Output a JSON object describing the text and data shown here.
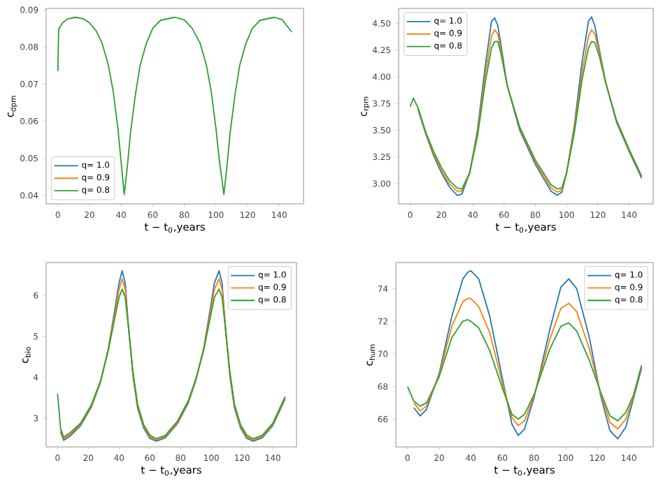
{
  "chart_data": [
    {
      "type": "line",
      "xlabel": "t − t$_{0}$,years",
      "ylabel": "c$_{dpm}$",
      "legend": "bottom left",
      "xlim": [
        -7.4,
        155.4
      ],
      "ylim": [
        0.0377,
        0.0904
      ],
      "xticks": [
        0,
        20,
        40,
        60,
        80,
        100,
        120,
        140
      ],
      "yticks": [
        0.04,
        0.05,
        0.06,
        0.07,
        0.08,
        0.09
      ],
      "x": [
        0,
        0.5,
        3,
        6,
        11,
        16,
        20,
        24,
        28,
        32,
        35,
        38,
        40,
        42,
        44,
        46,
        49,
        52,
        56,
        60,
        65,
        74,
        80,
        85,
        90,
        94,
        97,
        100,
        102,
        105,
        107,
        109,
        112,
        115,
        119,
        123,
        128,
        137,
        142,
        148
      ],
      "series": [
        {
          "name": "q= 1.0",
          "color": "#1f77b4",
          "values": [
            null,
            null,
            null,
            null,
            null,
            null,
            null,
            null,
            null,
            null,
            null,
            null,
            null,
            null,
            null,
            null,
            null,
            null,
            null,
            null,
            null,
            null,
            null,
            null,
            null,
            null,
            null,
            null,
            null,
            null,
            null,
            null,
            null,
            null,
            null,
            null,
            null,
            null,
            null,
            null
          ]
        },
        {
          "name": "q= 0.9",
          "color": "#ff7f0e",
          "values": [
            null,
            null,
            null,
            null,
            null,
            null,
            null,
            null,
            null,
            null,
            null,
            null,
            null,
            null,
            null,
            null,
            null,
            null,
            null,
            null,
            null,
            null,
            null,
            null,
            null,
            null,
            null,
            null,
            null,
            null,
            null,
            null,
            null,
            null,
            null,
            null,
            null,
            null,
            null,
            null
          ]
        },
        {
          "name": "q= 0.8",
          "color": "#2ca02c",
          "values": [
            0.0735,
            0.0848,
            0.0865,
            0.0875,
            0.088,
            0.0876,
            0.0865,
            0.0845,
            0.081,
            0.075,
            0.068,
            0.058,
            0.049,
            0.0402,
            0.048,
            0.057,
            0.067,
            0.075,
            0.081,
            0.085,
            0.0872,
            0.088,
            0.0873,
            0.085,
            0.081,
            0.075,
            0.068,
            0.058,
            0.05,
            0.0402,
            0.048,
            0.057,
            0.067,
            0.075,
            0.081,
            0.085,
            0.0872,
            0.088,
            0.0873,
            0.084
          ]
        }
      ]
    },
    {
      "type": "line",
      "xlabel": "t − t$_{0}$,years",
      "ylabel": "c$_{rpm}$",
      "legend": "top left",
      "xlim": [
        -7.4,
        155.4
      ],
      "ylim": [
        2.81,
        4.64
      ],
      "xticks": [
        0,
        20,
        40,
        60,
        80,
        100,
        120,
        140
      ],
      "yticks": [
        {
          "value": 3.0,
          "label": "3.00"
        },
        {
          "value": 3.25,
          "label": "3.25"
        },
        {
          "value": 3.5,
          "label": "3.50"
        },
        {
          "value": 3.75,
          "label": "3.75"
        },
        {
          "value": 4.0,
          "label": "4.00"
        },
        {
          "value": 4.25,
          "label": "4.25"
        },
        {
          "value": 4.5,
          "label": "4.50"
        }
      ],
      "x": [
        0,
        2,
        5,
        10,
        15,
        20,
        25,
        30,
        33,
        38,
        43,
        48,
        52,
        54,
        56,
        58,
        62,
        70,
        80,
        90,
        94,
        97,
        100,
        105,
        110,
        114,
        116,
        118,
        121,
        125,
        132,
        140,
        148
      ],
      "series": [
        {
          "name": "q= 1.0",
          "color": "#1f77b4",
          "values": [
            null,
            null,
            3.69,
            3.46,
            3.26,
            3.1,
            2.97,
            2.89,
            2.9,
            3.1,
            3.5,
            4.1,
            4.52,
            4.55,
            4.48,
            4.3,
            3.92,
            3.5,
            3.18,
            2.93,
            2.89,
            2.92,
            3.1,
            3.55,
            4.15,
            4.52,
            4.56,
            4.48,
            4.25,
            3.95,
            3.57,
            3.3,
            3.05
          ]
        },
        {
          "name": "q= 0.9",
          "color": "#ff7f0e",
          "values": [
            null,
            null,
            3.7,
            3.47,
            3.28,
            3.12,
            3.0,
            2.93,
            2.93,
            3.1,
            3.47,
            4.02,
            4.38,
            4.44,
            4.4,
            4.25,
            3.92,
            3.52,
            3.2,
            2.96,
            2.92,
            2.94,
            3.1,
            3.52,
            4.05,
            4.38,
            4.44,
            4.4,
            4.22,
            3.95,
            3.58,
            3.31,
            3.06
          ]
        },
        {
          "name": "q= 0.8",
          "color": "#2ca02c",
          "values": [
            3.72,
            3.8,
            3.71,
            3.48,
            3.3,
            3.15,
            3.03,
            2.96,
            2.95,
            3.1,
            3.44,
            3.95,
            4.27,
            4.33,
            4.33,
            4.22,
            3.92,
            3.53,
            3.22,
            2.99,
            2.95,
            2.96,
            3.1,
            3.48,
            3.98,
            4.27,
            4.33,
            4.32,
            4.19,
            3.94,
            3.59,
            3.32,
            3.07
          ]
        }
      ]
    },
    {
      "type": "line",
      "xlabel": "t − t$_{0}$,years",
      "ylabel": "c$_{bio}$",
      "legend": "top right",
      "xlim": [
        -7.4,
        155.4
      ],
      "ylim": [
        2.3,
        6.8
      ],
      "xticks": [
        0,
        20,
        40,
        60,
        80,
        100,
        120,
        140
      ],
      "yticks": [
        3,
        4,
        5,
        6
      ],
      "x": [
        0,
        2,
        4,
        8,
        15,
        22,
        28,
        33,
        37,
        40,
        42,
        44,
        46,
        49,
        52,
        56,
        60,
        64,
        70,
        78,
        85,
        90,
        95,
        99,
        102,
        105,
        107,
        109,
        112,
        115,
        119,
        123,
        127,
        133,
        140,
        148
      ],
      "series": [
        {
          "name": "q= 1.0",
          "color": "#1f77b4",
          "values": [
            null,
            2.66,
            2.46,
            2.56,
            2.82,
            3.27,
            3.88,
            4.7,
            5.6,
            6.3,
            6.6,
            6.3,
            5.3,
            4.05,
            3.25,
            2.76,
            2.51,
            2.44,
            2.52,
            2.87,
            3.37,
            3.93,
            4.7,
            5.6,
            6.3,
            6.6,
            6.3,
            5.3,
            4.05,
            3.25,
            2.76,
            2.51,
            2.44,
            2.52,
            2.82,
            3.47
          ]
        },
        {
          "name": "q= 0.9",
          "color": "#ff7f0e",
          "values": [
            null,
            2.7,
            2.5,
            2.6,
            2.85,
            3.3,
            3.9,
            4.7,
            5.5,
            6.15,
            6.4,
            6.15,
            5.3,
            4.1,
            3.3,
            2.8,
            2.55,
            2.47,
            2.55,
            2.9,
            3.4,
            3.95,
            4.7,
            5.5,
            6.15,
            6.4,
            6.15,
            5.3,
            4.1,
            3.3,
            2.8,
            2.55,
            2.47,
            2.55,
            2.85,
            3.5
          ]
        },
        {
          "name": "q= 0.8",
          "color": "#2ca02c",
          "values": [
            3.6,
            2.74,
            2.54,
            2.64,
            2.88,
            3.33,
            3.92,
            4.65,
            5.4,
            5.95,
            6.15,
            5.95,
            5.25,
            4.15,
            3.35,
            2.84,
            2.59,
            2.5,
            2.58,
            2.93,
            3.43,
            3.97,
            4.65,
            5.4,
            5.95,
            6.15,
            5.95,
            5.25,
            4.15,
            3.35,
            2.84,
            2.59,
            2.5,
            2.58,
            2.88,
            3.53
          ]
        }
      ]
    },
    {
      "type": "line",
      "xlabel": "t − t$_{0}$,years",
      "ylabel": "c$_{hum}$",
      "legend": "top right",
      "xlim": [
        -7.4,
        155.4
      ],
      "ylim": [
        64.3,
        75.6
      ],
      "xticks": [
        0,
        20,
        40,
        60,
        80,
        100,
        120,
        140
      ],
      "yticks": [
        66,
        68,
        70,
        72,
        74
      ],
      "x": [
        0,
        4,
        8,
        12,
        20,
        28,
        35,
        38,
        40,
        45,
        52,
        60,
        66,
        70,
        74,
        80,
        90,
        97,
        102,
        107,
        115,
        122,
        128,
        133,
        138,
        143,
        148
      ],
      "series": [
        {
          "name": "q= 1.0",
          "color": "#1f77b4",
          "values": [
            null,
            66.7,
            66.2,
            66.6,
            68.8,
            72.3,
            74.6,
            75.0,
            75.1,
            74.6,
            72.3,
            68.5,
            65.7,
            65.0,
            65.4,
            67.3,
            71.5,
            74.1,
            74.6,
            74.0,
            71.0,
            67.5,
            65.3,
            64.8,
            65.5,
            67.3,
            69.1
          ]
        },
        {
          "name": "q= 0.9",
          "color": "#ff7f0e",
          "values": [
            null,
            67.0,
            66.5,
            66.8,
            68.7,
            71.7,
            73.2,
            73.4,
            73.4,
            72.9,
            71.3,
            68.2,
            66.1,
            65.6,
            65.9,
            67.4,
            70.9,
            72.8,
            73.1,
            72.6,
            70.3,
            67.6,
            65.8,
            65.4,
            66.0,
            67.4,
            69.2
          ]
        },
        {
          "name": "q= 0.8",
          "color": "#2ca02c",
          "values": [
            68,
            67.1,
            66.8,
            67.0,
            68.6,
            71.0,
            72.0,
            72.1,
            72.0,
            71.6,
            70.2,
            67.9,
            66.3,
            66.0,
            66.3,
            67.5,
            70.3,
            71.7,
            71.9,
            71.4,
            69.6,
            67.7,
            66.2,
            65.9,
            66.4,
            67.5,
            69.3
          ]
        }
      ]
    }
  ]
}
